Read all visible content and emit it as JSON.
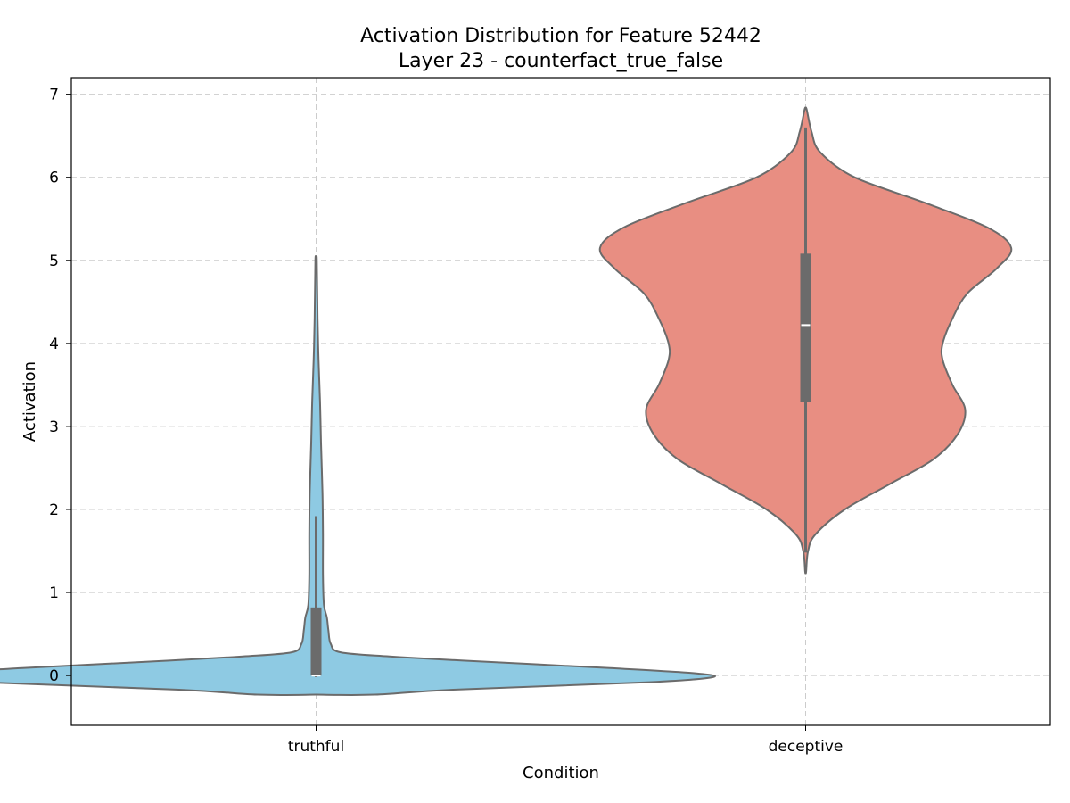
{
  "chart_data": {
    "type": "violin",
    "title": "Activation Distribution for Feature 52442",
    "subtitle": "Layer 23 - counterfact_true_false",
    "xlabel": "Condition",
    "ylabel": "Activation",
    "categories": [
      "truthful",
      "deceptive"
    ],
    "ylim": [
      -0.6,
      7.2
    ],
    "yticks": [
      0,
      1,
      2,
      3,
      4,
      5,
      6,
      7
    ],
    "grid": true,
    "colors": {
      "truthful": "#8ecae3",
      "deceptive": "#e88e82",
      "outline": "#6b6b6b",
      "box": "#6b6b6b",
      "median": "#ffffff",
      "grid": "#cccccc"
    },
    "series": [
      {
        "category": "truthful",
        "violin_min": -0.23,
        "violin_max": 5.0,
        "half_widths": [
          [
            -0.23,
            0.12
          ],
          [
            -0.17,
            0.28
          ],
          [
            -0.08,
            0.68
          ],
          [
            -0.02,
            0.81
          ],
          [
            0.03,
            0.77
          ],
          [
            0.09,
            0.6
          ],
          [
            0.18,
            0.3
          ],
          [
            0.23,
            0.15
          ],
          [
            0.28,
            0.05
          ],
          [
            0.38,
            0.03
          ],
          [
            0.55,
            0.025
          ],
          [
            0.7,
            0.022
          ],
          [
            0.85,
            0.016
          ],
          [
            1.2,
            0.014
          ],
          [
            1.7,
            0.014
          ],
          [
            2.2,
            0.013
          ],
          [
            2.8,
            0.01
          ],
          [
            3.3,
            0.008
          ],
          [
            3.8,
            0.005
          ],
          [
            4.3,
            0.003
          ],
          [
            5.0,
            0.0015
          ]
        ],
        "quartiles": [
          0.0,
          0.82
        ],
        "median": 0.0,
        "whisker": [
          -0.02,
          1.92
        ]
      },
      {
        "category": "deceptive",
        "violin_min": 1.25,
        "violin_max": 6.82,
        "half_widths": [
          [
            1.25,
            0.001
          ],
          [
            1.5,
            0.005
          ],
          [
            1.7,
            0.02
          ],
          [
            2.0,
            0.08
          ],
          [
            2.3,
            0.17
          ],
          [
            2.6,
            0.26
          ],
          [
            2.9,
            0.31
          ],
          [
            3.2,
            0.326
          ],
          [
            3.5,
            0.3
          ],
          [
            3.8,
            0.28
          ],
          [
            4.0,
            0.28
          ],
          [
            4.3,
            0.3
          ],
          [
            4.6,
            0.33
          ],
          [
            4.9,
            0.39
          ],
          [
            5.15,
            0.42
          ],
          [
            5.4,
            0.37
          ],
          [
            5.7,
            0.24
          ],
          [
            6.0,
            0.1
          ],
          [
            6.3,
            0.03
          ],
          [
            6.55,
            0.012
          ],
          [
            6.82,
            0.002
          ]
        ],
        "quartiles": [
          3.3,
          5.08
        ],
        "median": 4.22,
        "whisker": [
          1.48,
          6.6
        ]
      }
    ]
  }
}
